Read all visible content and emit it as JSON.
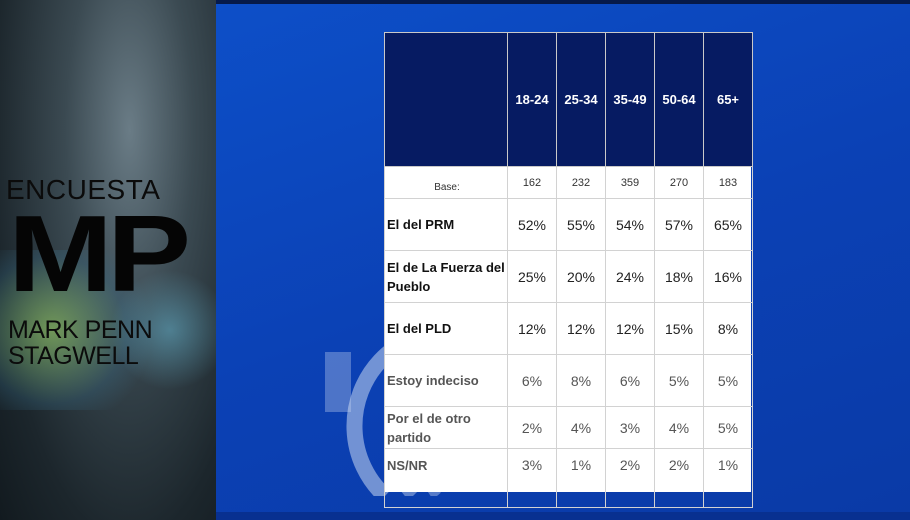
{
  "logo": {
    "top": "ENCUESTA",
    "mark": "MP",
    "line1": "MARK PENN",
    "line2": "STAGWELL"
  },
  "colors": {
    "header_bg": "#061b62",
    "background": "#0b41b5"
  },
  "chart_data": {
    "type": "table",
    "columns": [
      "18-24",
      "25-34",
      "35-49",
      "50-64",
      "65+"
    ],
    "base_label": "Base:",
    "base": [
      "162",
      "232",
      "359",
      "270",
      "183"
    ],
    "rows": [
      {
        "label": "El del PRM",
        "values": [
          "52%",
          "55%",
          "54%",
          "57%",
          "65%"
        ]
      },
      {
        "label": "El de La Fuerza del Pueblo",
        "values": [
          "25%",
          "20%",
          "24%",
          "18%",
          "16%"
        ]
      },
      {
        "label": "El del PLD",
        "values": [
          "12%",
          "12%",
          "12%",
          "15%",
          "8%"
        ]
      },
      {
        "label": "Estoy indeciso",
        "values": [
          "6%",
          "8%",
          "6%",
          "5%",
          "5%"
        ]
      },
      {
        "label": "Por el de otro partido",
        "values": [
          "2%",
          "4%",
          "3%",
          "4%",
          "5%"
        ]
      },
      {
        "label": "NS/NR",
        "values": [
          "3%",
          "1%",
          "2%",
          "2%",
          "1%"
        ]
      }
    ]
  }
}
